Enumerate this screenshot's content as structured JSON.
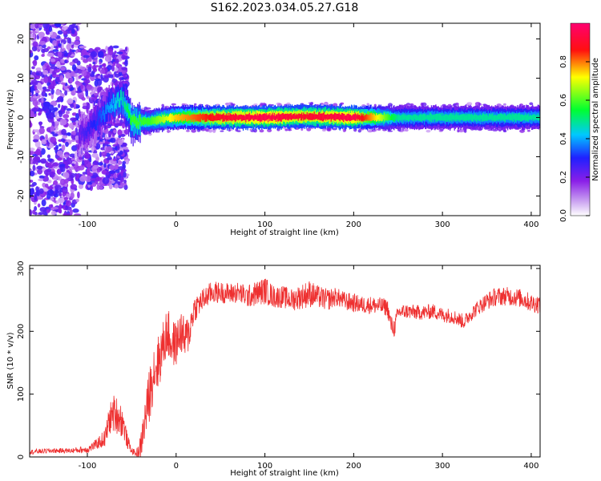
{
  "figure": {
    "title": "S162.2023.034.05.27.G18"
  },
  "chart_data": [
    {
      "type": "heatmap",
      "xlabel": "Height of straight line (km)",
      "ylabel": "Frequency (Hz)",
      "xlim": [
        -165,
        410
      ],
      "ylim": [
        -25,
        24
      ],
      "xticks": [
        -100,
        0,
        100,
        200,
        300,
        400
      ],
      "yticks": [
        -20,
        -10,
        0,
        10,
        20
      ],
      "colorbar": {
        "label": "Normalized spectral amplitude",
        "range": [
          0,
          1
        ],
        "ticks": [
          0.0,
          0.2,
          0.4,
          0.6,
          0.8
        ],
        "colors": [
          "#ffffff",
          "#8a1fe8",
          "#2020ff",
          "#00c8ff",
          "#00ff30",
          "#ffff00",
          "#ff1010",
          "#ff0070"
        ]
      },
      "ridge": {
        "description_points_x": [
          -110,
          -90,
          -75,
          -60,
          -50,
          -40,
          -30,
          -20,
          0,
          50,
          100,
          145,
          200,
          250,
          300,
          350,
          410
        ],
        "freq_center": [
          -5,
          -1,
          3,
          4.5,
          -1.5,
          -1,
          -1,
          -0.5,
          0,
          0,
          0,
          0.3,
          0,
          0,
          0,
          0,
          0
        ],
        "amplitude": [
          0.2,
          0.3,
          0.4,
          0.5,
          0.6,
          0.6,
          0.6,
          0.65,
          0.75,
          0.9,
          0.95,
          0.9,
          0.95,
          0.5,
          0.5,
          0.5,
          0.5
        ]
      }
    },
    {
      "type": "line",
      "xlabel": "Height of straight line (km)",
      "ylabel": "SNR (10 * v/v)",
      "xlim": [
        -165,
        410
      ],
      "ylim": [
        0,
        305
      ],
      "xticks": [
        -100,
        0,
        100,
        200,
        300,
        400
      ],
      "yticks": [
        0,
        100,
        200,
        300
      ],
      "series": [
        {
          "color": "#ee3030",
          "x": [
            -165,
            -140,
            -120,
            -100,
            -90,
            -80,
            -75,
            -70,
            -65,
            -60,
            -55,
            -50,
            -45,
            -40,
            -35,
            -30,
            -25,
            -20,
            -15,
            -10,
            -5,
            0,
            5,
            10,
            15,
            20,
            30,
            40,
            50,
            60,
            70,
            80,
            90,
            100,
            110,
            120,
            130,
            140,
            150,
            160,
            170,
            180,
            190,
            200,
            210,
            220,
            230,
            238,
            242,
            246,
            250,
            260,
            270,
            280,
            290,
            300,
            310,
            320,
            325,
            330,
            340,
            350,
            360,
            370,
            380,
            390,
            400,
            410
          ],
          "y": [
            8,
            10,
            10,
            12,
            20,
            30,
            60,
            70,
            65,
            55,
            25,
            10,
            5,
            15,
            60,
            100,
            140,
            150,
            175,
            200,
            180,
            180,
            200,
            185,
            200,
            235,
            250,
            262,
            262,
            260,
            262,
            255,
            260,
            265,
            255,
            255,
            250,
            255,
            260,
            255,
            250,
            255,
            248,
            245,
            242,
            242,
            240,
            238,
            210,
            205,
            230,
            232,
            230,
            230,
            232,
            226,
            225,
            218,
            215,
            225,
            238,
            248,
            255,
            256,
            255,
            252,
            245,
            243
          ],
          "noise": [
            4,
            4,
            4,
            6,
            8,
            15,
            25,
            30,
            30,
            25,
            12,
            5,
            5,
            20,
            35,
            45,
            45,
            45,
            40,
            40,
            40,
            35,
            35,
            35,
            30,
            22,
            18,
            18,
            17,
            17,
            17,
            18,
            20,
            22,
            18,
            18,
            18,
            20,
            22,
            18,
            18,
            15,
            15,
            15,
            14,
            14,
            14,
            14,
            15,
            15,
            12,
            12,
            12,
            12,
            12,
            12,
            12,
            12,
            12,
            12,
            12,
            14,
            15,
            15,
            15,
            15,
            15,
            15
          ]
        }
      ]
    }
  ]
}
